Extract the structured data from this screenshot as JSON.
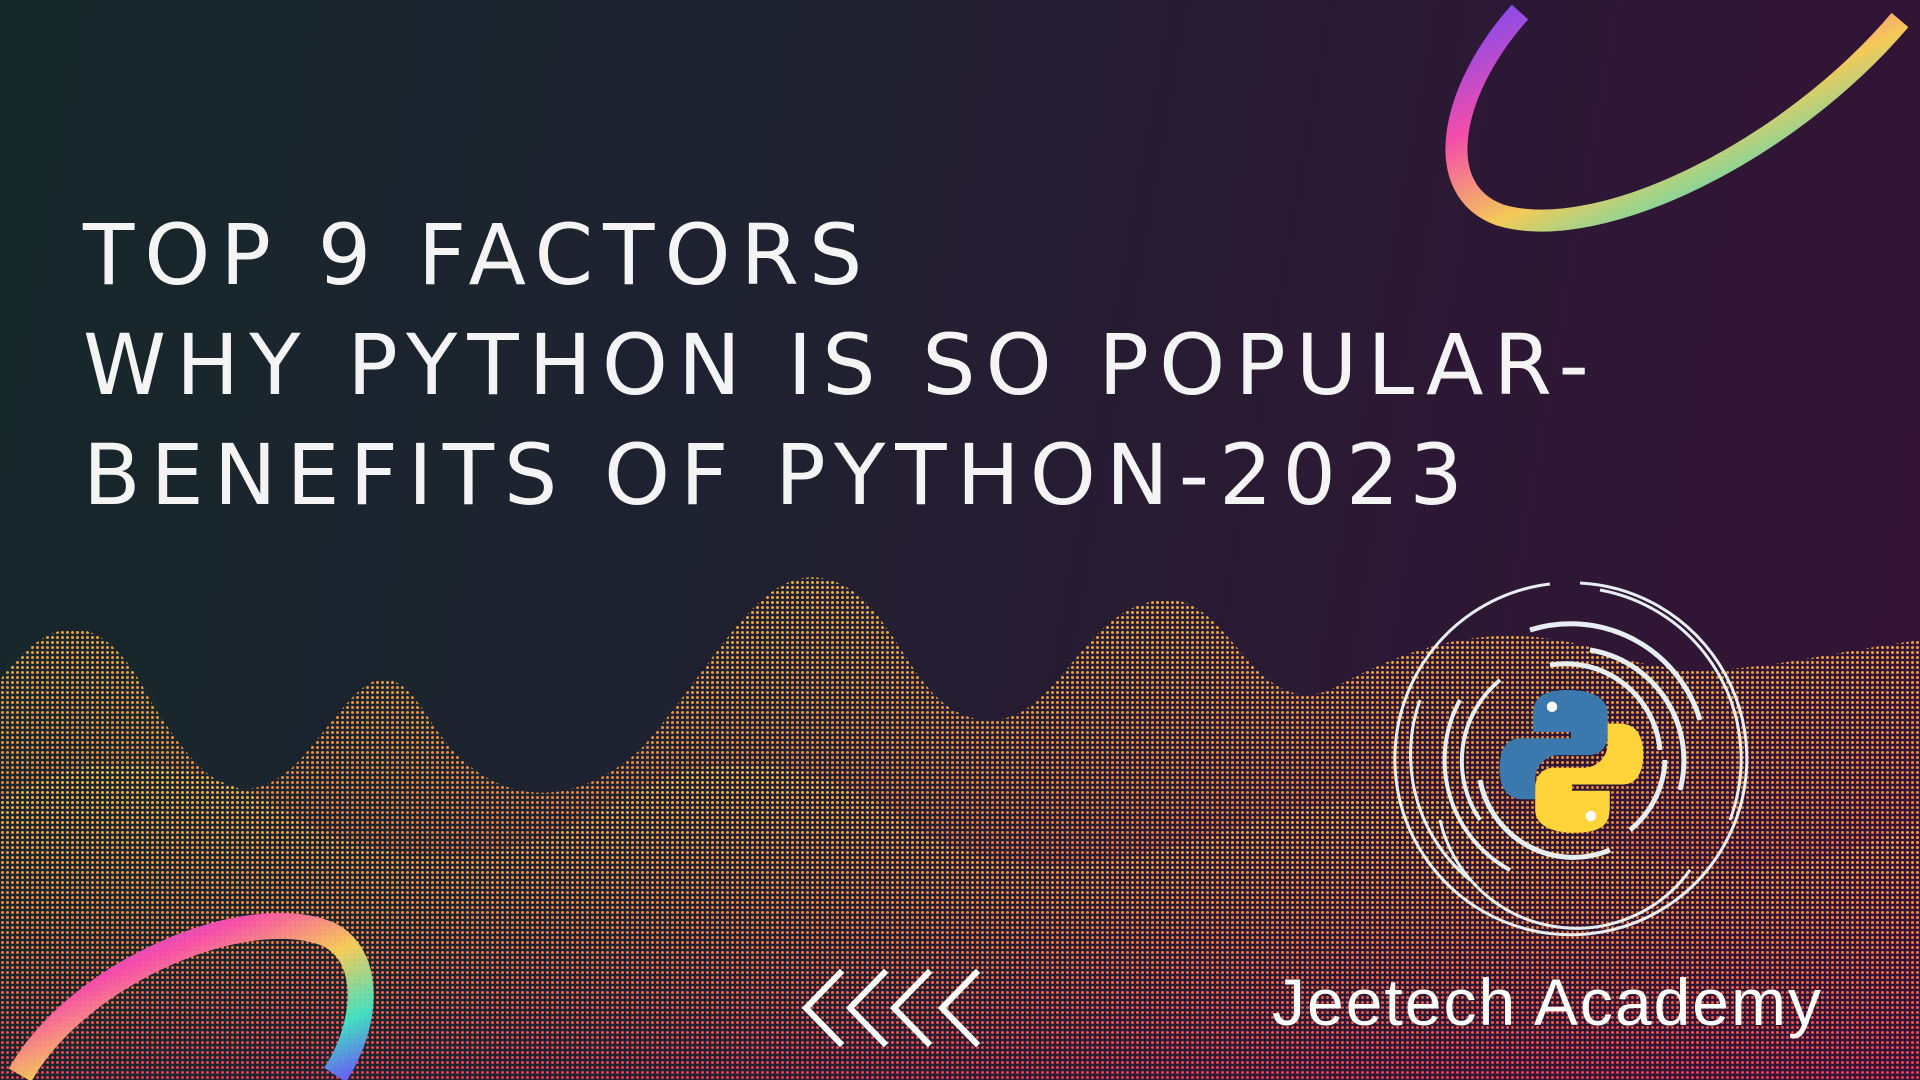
{
  "title": {
    "line1": "TOP 9 FACTORS",
    "line2": "WHY PYTHON IS SO POPULAR-",
    "line3": "BENEFITS OF PYTHON-2023"
  },
  "brand": {
    "name": "Jeetech Academy"
  },
  "icons": {
    "logo": "python-logo-icon",
    "arrows": "chevrons-left-icon",
    "ring": "neon-ring-icon"
  },
  "colors": {
    "python_blue": "#3b78ad",
    "python_yellow": "#ffd43b",
    "wave_top": "#f5b13d",
    "wave_bottom": "#e8404e"
  }
}
